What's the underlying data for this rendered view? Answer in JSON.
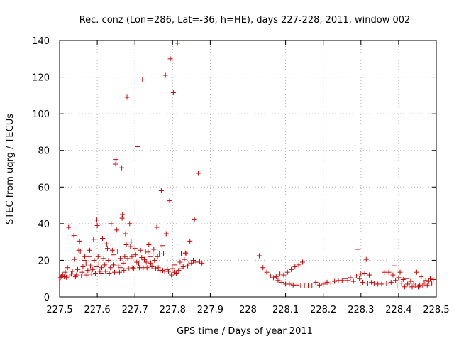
{
  "chart_data": {
    "type": "scatter",
    "title": "Rec. conz (Lon=286, Lat=-36, h=HE), days 227-228, 2011, window 002",
    "xlabel": "GPS time / Days of year 2011",
    "ylabel": "STEC from uqrg / TECUs",
    "xlim": [
      227.5,
      228.5
    ],
    "ylim": [
      0,
      140
    ],
    "xticks": [
      "227.5",
      "227.6",
      "227.7",
      "227.8",
      "227.9",
      "228",
      "228.1",
      "228.2",
      "228.3",
      "228.4",
      "228.5"
    ],
    "xtick_values": [
      227.5,
      227.6,
      227.7,
      227.8,
      227.9,
      228.0,
      228.1,
      228.2,
      228.3,
      228.4,
      228.5
    ],
    "yticks": [
      "0",
      "20",
      "40",
      "60",
      "80",
      "100",
      "120",
      "140"
    ],
    "ytick_values": [
      0,
      20,
      40,
      60,
      80,
      100,
      120,
      140
    ],
    "grid": true,
    "marker": "plus",
    "color": "#cc0000",
    "series": [
      {
        "name": "STEC",
        "points": [
          [
            227.502,
            10.5
          ],
          [
            227.505,
            11.2
          ],
          [
            227.508,
            12.0
          ],
          [
            227.512,
            11.0
          ],
          [
            227.515,
            13.5
          ],
          [
            227.518,
            10.8
          ],
          [
            227.521,
            16.0
          ],
          [
            227.524,
            38.0
          ],
          [
            227.527,
            11.5
          ],
          [
            227.531,
            12.5
          ],
          [
            227.534,
            14.0
          ],
          [
            227.538,
            33.5
          ],
          [
            227.54,
            20.5
          ],
          [
            227.542,
            11.0
          ],
          [
            227.545,
            12.0
          ],
          [
            227.548,
            15.0
          ],
          [
            227.551,
            25.5
          ],
          [
            227.553,
            30.5
          ],
          [
            227.555,
            25.0
          ],
          [
            227.558,
            11.5
          ],
          [
            227.56,
            13.5
          ],
          [
            227.562,
            16.5
          ],
          [
            227.565,
            20.0
          ],
          [
            227.567,
            22.0
          ],
          [
            227.57,
            18.0
          ],
          [
            227.572,
            12.0
          ],
          [
            227.575,
            14.5
          ],
          [
            227.578,
            22.0
          ],
          [
            227.58,
            25.5
          ],
          [
            227.582,
            17.0
          ],
          [
            227.585,
            12.5
          ],
          [
            227.588,
            15.0
          ],
          [
            227.59,
            31.5
          ],
          [
            227.592,
            20.0
          ],
          [
            227.595,
            13.0
          ],
          [
            227.597,
            16.5
          ],
          [
            227.599,
            42.0
          ],
          [
            227.6,
            39.0
          ],
          [
            227.602,
            22.0
          ],
          [
            227.604,
            18.0
          ],
          [
            227.607,
            14.0
          ],
          [
            227.61,
            13.0
          ],
          [
            227.612,
            16.0
          ],
          [
            227.614,
            32.0
          ],
          [
            227.617,
            21.0
          ],
          [
            227.62,
            17.5
          ],
          [
            227.622,
            14.0
          ],
          [
            227.625,
            29.0
          ],
          [
            227.627,
            26.5
          ],
          [
            227.63,
            20.0
          ],
          [
            227.632,
            13.0
          ],
          [
            227.635,
            16.0
          ],
          [
            227.637,
            40.0
          ],
          [
            227.64,
            25.5
          ],
          [
            227.642,
            23.0
          ],
          [
            227.644,
            17.5
          ],
          [
            227.646,
            13.5
          ],
          [
            227.649,
            72.5
          ],
          [
            227.65,
            75.0
          ],
          [
            227.652,
            36.5
          ],
          [
            227.654,
            25.0
          ],
          [
            227.656,
            17.0
          ],
          [
            227.659,
            13.5
          ],
          [
            227.661,
            21.0
          ],
          [
            227.663,
            16.0
          ],
          [
            227.665,
            70.5
          ],
          [
            227.666,
            43.0
          ],
          [
            227.667,
            45.0
          ],
          [
            227.669,
            18.5
          ],
          [
            227.671,
            14.5
          ],
          [
            227.673,
            22.0
          ],
          [
            227.675,
            34.5
          ],
          [
            227.677,
            28.5
          ],
          [
            227.679,
            109.0
          ],
          [
            227.681,
            21.0
          ],
          [
            227.683,
            15.5
          ],
          [
            227.686,
            40.0
          ],
          [
            227.688,
            27.5
          ],
          [
            227.69,
            30.0
          ],
          [
            227.692,
            22.0
          ],
          [
            227.694,
            16.0
          ],
          [
            227.697,
            15.5
          ],
          [
            227.7,
            26.5
          ],
          [
            227.702,
            23.0
          ],
          [
            227.705,
            19.0
          ],
          [
            227.708,
            82.0
          ],
          [
            227.71,
            18.0
          ],
          [
            227.712,
            16.0
          ],
          [
            227.715,
            25.5
          ],
          [
            227.718,
            21.5
          ],
          [
            227.72,
            118.5
          ],
          [
            227.722,
            16.0
          ],
          [
            227.725,
            20.5
          ],
          [
            227.728,
            25.0
          ],
          [
            227.73,
            19.0
          ],
          [
            227.732,
            16.0
          ],
          [
            227.735,
            24.5
          ],
          [
            227.737,
            28.5
          ],
          [
            227.74,
            22.0
          ],
          [
            227.742,
            18.5
          ],
          [
            227.745,
            16.5
          ],
          [
            227.748,
            23.5
          ],
          [
            227.75,
            26.0
          ],
          [
            227.752,
            20.0
          ],
          [
            227.755,
            15.5
          ],
          [
            227.758,
            38.0
          ],
          [
            227.76,
            22.0
          ],
          [
            227.762,
            16.0
          ],
          [
            227.765,
            23.5
          ],
          [
            227.767,
            14.5
          ],
          [
            227.77,
            58.0
          ],
          [
            227.772,
            28.0
          ],
          [
            227.774,
            14.5
          ],
          [
            227.776,
            23.5
          ],
          [
            227.779,
            14.0
          ],
          [
            227.781,
            121.0
          ],
          [
            227.783,
            34.5
          ],
          [
            227.786,
            15.0
          ],
          [
            227.789,
            14.0
          ],
          [
            227.792,
            52.5
          ],
          [
            227.794,
            130.0
          ],
          [
            227.797,
            12.0
          ],
          [
            227.799,
            15.5
          ],
          [
            227.802,
            111.5
          ],
          [
            227.804,
            13.5
          ],
          [
            227.806,
            17.5
          ],
          [
            227.81,
            13.0
          ],
          [
            227.813,
            138.5
          ],
          [
            227.816,
            14.5
          ],
          [
            227.82,
            19.0
          ],
          [
            227.823,
            23.5
          ],
          [
            227.825,
            15.5
          ],
          [
            227.828,
            16.5
          ],
          [
            227.831,
            20.5
          ],
          [
            227.834,
            24.0
          ],
          [
            227.837,
            23.5
          ],
          [
            227.84,
            17.0
          ],
          [
            227.843,
            18.0
          ],
          [
            227.846,
            30.5
          ],
          [
            227.85,
            18.5
          ],
          [
            227.855,
            20.0
          ],
          [
            227.858,
            42.5
          ],
          [
            227.862,
            19.0
          ],
          [
            227.868,
            67.5
          ],
          [
            227.872,
            19.5
          ],
          [
            227.878,
            18.5
          ],
          [
            228.03,
            22.5
          ],
          [
            228.04,
            16.0
          ],
          [
            228.05,
            13.5
          ],
          [
            228.06,
            11.5
          ],
          [
            228.068,
            10.5
          ],
          [
            228.075,
            11.0
          ],
          [
            228.08,
            9.0
          ],
          [
            228.085,
            12.5
          ],
          [
            228.09,
            8.0
          ],
          [
            228.095,
            12.0
          ],
          [
            228.1,
            7.0
          ],
          [
            228.105,
            13.5
          ],
          [
            228.11,
            7.0
          ],
          [
            228.115,
            15.0
          ],
          [
            228.12,
            6.5
          ],
          [
            228.125,
            16.5
          ],
          [
            228.13,
            6.5
          ],
          [
            228.135,
            17.5
          ],
          [
            228.14,
            6.0
          ],
          [
            228.145,
            19.0
          ],
          [
            228.15,
            6.0
          ],
          [
            228.16,
            6.0
          ],
          [
            228.17,
            6.0
          ],
          [
            228.18,
            8.0
          ],
          [
            228.19,
            6.5
          ],
          [
            228.2,
            7.0
          ],
          [
            228.21,
            8.0
          ],
          [
            228.22,
            7.5
          ],
          [
            228.23,
            8.5
          ],
          [
            228.24,
            9.0
          ],
          [
            228.25,
            9.0
          ],
          [
            228.258,
            10.0
          ],
          [
            228.265,
            9.0
          ],
          [
            228.272,
            10.5
          ],
          [
            228.28,
            8.5
          ],
          [
            228.288,
            11.5
          ],
          [
            228.292,
            26.0
          ],
          [
            228.296,
            10.0
          ],
          [
            228.3,
            12.5
          ],
          [
            228.305,
            8.0
          ],
          [
            228.31,
            13.0
          ],
          [
            228.314,
            20.5
          ],
          [
            228.318,
            7.5
          ],
          [
            228.322,
            12.0
          ],
          [
            228.328,
            8.0
          ],
          [
            228.335,
            7.5
          ],
          [
            228.345,
            7.0
          ],
          [
            228.355,
            7.0
          ],
          [
            228.362,
            13.5
          ],
          [
            228.368,
            7.5
          ],
          [
            228.374,
            13.5
          ],
          [
            228.38,
            8.0
          ],
          [
            228.385,
            12.0
          ],
          [
            228.388,
            17.0
          ],
          [
            228.392,
            9.0
          ],
          [
            228.396,
            6.0
          ],
          [
            228.4,
            10.5
          ],
          [
            228.404,
            13.5
          ],
          [
            228.408,
            7.5
          ],
          [
            228.412,
            9.5
          ],
          [
            228.416,
            5.5
          ],
          [
            228.42,
            10.0
          ],
          [
            228.424,
            7.0
          ],
          [
            228.428,
            6.0
          ],
          [
            228.432,
            8.5
          ],
          [
            228.436,
            5.5
          ],
          [
            228.44,
            7.5
          ],
          [
            228.444,
            6.0
          ],
          [
            228.448,
            13.5
          ],
          [
            228.452,
            5.5
          ],
          [
            228.456,
            6.5
          ],
          [
            228.46,
            11.0
          ],
          [
            228.464,
            6.0
          ],
          [
            228.468,
            7.5
          ],
          [
            228.472,
            9.0
          ],
          [
            228.476,
            6.5
          ],
          [
            228.48,
            8.5
          ],
          [
            228.484,
            10.0
          ],
          [
            228.488,
            7.5
          ],
          [
            228.492,
            9.5
          ]
        ]
      }
    ]
  }
}
